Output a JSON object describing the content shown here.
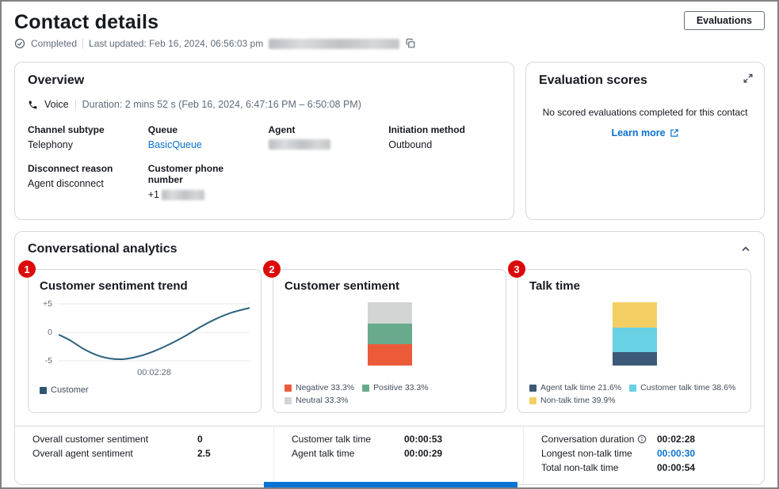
{
  "page": {
    "title": "Contact details",
    "evaluations_button": "Evaluations",
    "status_completed": "Completed",
    "last_updated": "Last updated: Feb 16, 2024, 06:56:03 pm"
  },
  "overview": {
    "title": "Overview",
    "channel_type": "Voice",
    "duration": "Duration: 2 mins 52 s (Feb 16, 2024, 6:47:16 PM – 6:50:08 PM)",
    "channel_subtype_label": "Channel subtype",
    "channel_subtype_value": "Telephony",
    "queue_label": "Queue",
    "queue_value": "BasicQueue",
    "agent_label": "Agent",
    "initiation_label": "Initiation method",
    "initiation_value": "Outbound",
    "disconnect_label": "Disconnect reason",
    "disconnect_value": "Agent disconnect",
    "phone_label": "Customer phone number",
    "phone_value_prefix": "+1"
  },
  "evaluation": {
    "title": "Evaluation scores",
    "empty_message": "No scored evaluations completed for this contact",
    "learn_more": "Learn more"
  },
  "analytics": {
    "title": "Conversational analytics"
  },
  "annotations": [
    "1",
    "2",
    "3"
  ],
  "chart_data": [
    {
      "type": "line",
      "title": "Customer sentiment trend",
      "ylabel_ticks": [
        "+5",
        "0",
        "-5"
      ],
      "ylim": [
        -5,
        5
      ],
      "x_tick": "00:02:28",
      "grid": true,
      "line_color": "#2e6180",
      "legend": [
        {
          "label": "Customer",
          "color": "#2e5570"
        }
      ],
      "points": [
        [
          0,
          -0.4
        ],
        [
          0.06,
          -1.4
        ],
        [
          0.13,
          -2.9
        ],
        [
          0.2,
          -4.0
        ],
        [
          0.27,
          -4.6
        ],
        [
          0.34,
          -4.7
        ],
        [
          0.42,
          -4.2
        ],
        [
          0.5,
          -3.3
        ],
        [
          0.58,
          -2.1
        ],
        [
          0.66,
          -0.7
        ],
        [
          0.74,
          0.9
        ],
        [
          0.82,
          2.3
        ],
        [
          0.9,
          3.4
        ],
        [
          1,
          4.3
        ]
      ]
    },
    {
      "type": "stacked-bar",
      "title": "Customer sentiment",
      "segments": [
        {
          "name": "Neutral",
          "value": 33.3,
          "color": "#d1d5d3"
        },
        {
          "name": "Positive",
          "value": 33.3,
          "color": "#69aa8c"
        },
        {
          "name": "Negative",
          "value": 33.3,
          "color": "#ec5b39"
        }
      ],
      "legend": [
        {
          "label": "Negative 33.3%",
          "color": "#ec5b39"
        },
        {
          "label": "Positive 33.3%",
          "color": "#69aa8c"
        },
        {
          "label": "Neutral 33.3%",
          "color": "#d1d5d3"
        }
      ]
    },
    {
      "type": "stacked-bar",
      "title": "Talk time",
      "segments": [
        {
          "name": "Non-talk time",
          "value": 39.9,
          "color": "#f3cf63"
        },
        {
          "name": "Customer talk time",
          "value": 38.6,
          "color": "#68d1e4"
        },
        {
          "name": "Agent talk time",
          "value": 21.6,
          "color": "#3c5a77"
        }
      ],
      "legend": [
        {
          "label": "Agent talk time 21.6%",
          "color": "#3c5a77"
        },
        {
          "label": "Customer talk time 38.6%",
          "color": "#68d1e4"
        },
        {
          "label": "Non-talk time 39.9%",
          "color": "#f3cf63"
        }
      ]
    }
  ],
  "stats": {
    "col1": [
      {
        "label": "Overall customer sentiment",
        "value": "0"
      },
      {
        "label": "Overall agent sentiment",
        "value": "2.5"
      }
    ],
    "col2": [
      {
        "label": "Customer talk time",
        "value": "00:00:53"
      },
      {
        "label": "Agent talk time",
        "value": "00:00:29"
      }
    ],
    "col3": [
      {
        "label": "Conversation duration",
        "value": "00:02:28"
      },
      {
        "label": "Longest non-talk time",
        "value": "00:00:30"
      },
      {
        "label": "Total non-talk time",
        "value": "00:00:54"
      }
    ]
  }
}
